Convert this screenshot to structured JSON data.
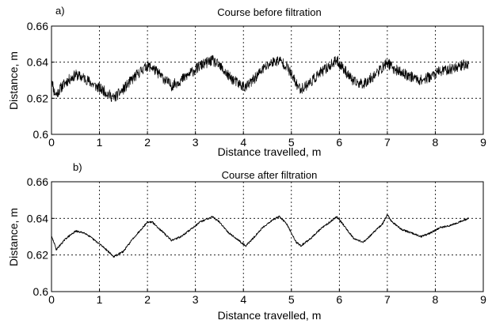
{
  "chart_data": [
    {
      "panel_label": "a)",
      "type": "line",
      "title": "Course before filtration",
      "xlabel": "Distance travelled, m",
      "ylabel": "Distance, m",
      "xlim": [
        0,
        9
      ],
      "ylim": [
        0.6,
        0.66
      ],
      "xticks": [
        "0",
        "1",
        "2",
        "3",
        "4",
        "5",
        "6",
        "7",
        "8",
        "9"
      ],
      "yticks": [
        "0.6",
        "0.62",
        "0.64",
        "0.66"
      ],
      "grid": true,
      "noise_amplitude": 0.003,
      "series": [
        {
          "color": "#000000",
          "x": [
            0,
            0.05,
            0.1,
            0.2,
            0.3,
            0.5,
            0.7,
            0.9,
            1.1,
            1.3,
            1.5,
            1.7,
            1.9,
            2.0,
            2.1,
            2.3,
            2.5,
            2.7,
            2.9,
            3.1,
            3.35,
            3.5,
            3.7,
            3.9,
            4.05,
            4.2,
            4.4,
            4.6,
            4.75,
            4.9,
            5.0,
            5.1,
            5.2,
            5.4,
            5.6,
            5.8,
            5.95,
            6.1,
            6.3,
            6.5,
            6.7,
            6.9,
            7.0,
            7.1,
            7.3,
            7.5,
            7.7,
            7.9,
            8.1,
            8.3,
            8.5,
            8.7
          ],
          "y": [
            0.632,
            0.624,
            0.622,
            0.626,
            0.629,
            0.633,
            0.631,
            0.627,
            0.624,
            0.62,
            0.625,
            0.631,
            0.636,
            0.638,
            0.637,
            0.632,
            0.627,
            0.63,
            0.634,
            0.638,
            0.641,
            0.638,
            0.632,
            0.628,
            0.626,
            0.63,
            0.636,
            0.64,
            0.641,
            0.638,
            0.633,
            0.628,
            0.625,
            0.629,
            0.634,
            0.638,
            0.641,
            0.636,
            0.629,
            0.628,
            0.632,
            0.637,
            0.64,
            0.637,
            0.634,
            0.632,
            0.63,
            0.632,
            0.635,
            0.636,
            0.638,
            0.639
          ]
        }
      ]
    },
    {
      "panel_label": "b)",
      "type": "line",
      "title": "Course after filtration",
      "xlabel": "Distance travelled, m",
      "ylabel": "Distance, m",
      "xlim": [
        0,
        9
      ],
      "ylim": [
        0.6,
        0.66
      ],
      "xticks": [
        "0",
        "1",
        "2",
        "3",
        "4",
        "5",
        "6",
        "7",
        "8",
        "9"
      ],
      "yticks": [
        "0.6",
        "0.62",
        "0.64",
        "0.66"
      ],
      "grid": true,
      "noise_amplitude": 0.0005,
      "series": [
        {
          "color": "#000000",
          "x": [
            0,
            0.05,
            0.1,
            0.2,
            0.3,
            0.5,
            0.7,
            0.9,
            1.1,
            1.3,
            1.5,
            1.7,
            1.9,
            2.0,
            2.1,
            2.3,
            2.5,
            2.7,
            2.9,
            3.1,
            3.35,
            3.5,
            3.7,
            3.9,
            4.05,
            4.2,
            4.4,
            4.6,
            4.75,
            4.9,
            5.0,
            5.1,
            5.2,
            5.4,
            5.6,
            5.8,
            5.95,
            6.1,
            6.3,
            6.5,
            6.7,
            6.9,
            7.0,
            7.1,
            7.3,
            7.5,
            7.7,
            7.9,
            8.1,
            8.3,
            8.5,
            8.7
          ],
          "y": [
            0.63,
            0.627,
            0.623,
            0.626,
            0.629,
            0.633,
            0.632,
            0.628,
            0.624,
            0.619,
            0.622,
            0.629,
            0.635,
            0.638,
            0.638,
            0.633,
            0.628,
            0.63,
            0.634,
            0.638,
            0.641,
            0.638,
            0.632,
            0.628,
            0.625,
            0.629,
            0.635,
            0.639,
            0.641,
            0.637,
            0.632,
            0.627,
            0.625,
            0.629,
            0.634,
            0.638,
            0.641,
            0.636,
            0.629,
            0.627,
            0.632,
            0.637,
            0.642,
            0.638,
            0.634,
            0.632,
            0.63,
            0.632,
            0.635,
            0.636,
            0.638,
            0.64
          ]
        }
      ]
    }
  ]
}
